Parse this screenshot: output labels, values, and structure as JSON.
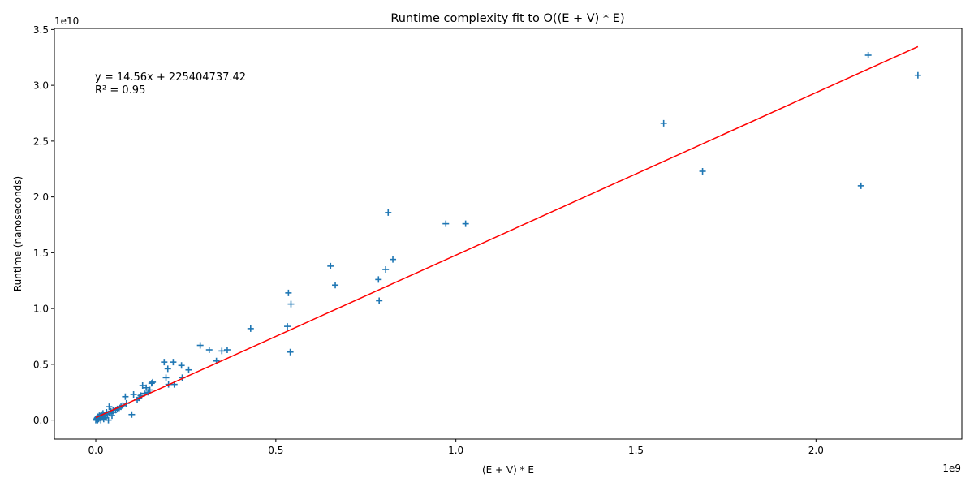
{
  "chart_data": {
    "type": "scatter",
    "title": "Runtime complexity fit to O((E + V) * E)",
    "xlabel": "(E + V) * E",
    "ylabel": "Runtime (nanoseconds)",
    "x_scale_label": "1e9",
    "y_scale_label": "1e10",
    "xlim": [
      -0.115,
      2.405
    ],
    "ylim": [
      -0.17,
      3.51
    ],
    "xticks": [
      0.0,
      0.5,
      1.0,
      1.5,
      2.0
    ],
    "xtick_labels": [
      "0.0",
      "0.5",
      "1.0",
      "1.5",
      "2.0"
    ],
    "yticks": [
      0.0,
      0.5,
      1.0,
      1.5,
      2.0,
      2.5,
      3.0,
      3.5
    ],
    "ytick_labels": [
      "0.0",
      "0.5",
      "1.0",
      "1.5",
      "2.0",
      "2.5",
      "3.0",
      "3.5"
    ],
    "grid": false,
    "legend": false,
    "point_color": "#1f77b4",
    "fit_color": "#ff0000",
    "marker": "plus",
    "annotation": {
      "equation": "y = 14.56x + 225404737.42",
      "r_squared": "R² = 0.95"
    },
    "fit": {
      "slope": 14.56,
      "intercept": 225404737.42,
      "x_range": [
        0.0,
        2.283
      ]
    },
    "points": [
      {
        "x": 0.0,
        "y": 0.0
      },
      {
        "x": 0.002,
        "y": 0.01
      },
      {
        "x": 0.004,
        "y": 0.02
      },
      {
        "x": 0.005,
        "y": 0.0
      },
      {
        "x": 0.006,
        "y": 0.03
      },
      {
        "x": 0.008,
        "y": 0.01
      },
      {
        "x": 0.01,
        "y": 0.04
      },
      {
        "x": 0.012,
        "y": 0.02
      },
      {
        "x": 0.014,
        "y": 0.0
      },
      {
        "x": 0.016,
        "y": 0.05
      },
      {
        "x": 0.018,
        "y": 0.03
      },
      {
        "x": 0.02,
        "y": 0.06
      },
      {
        "x": 0.022,
        "y": 0.01
      },
      {
        "x": 0.025,
        "y": 0.04
      },
      {
        "x": 0.028,
        "y": 0.02
      },
      {
        "x": 0.03,
        "y": 0.07
      },
      {
        "x": 0.032,
        "y": 0.05
      },
      {
        "x": 0.035,
        "y": 0.0
      },
      {
        "x": 0.037,
        "y": 0.12
      },
      {
        "x": 0.04,
        "y": 0.06
      },
      {
        "x": 0.042,
        "y": 0.08
      },
      {
        "x": 0.045,
        "y": 0.04
      },
      {
        "x": 0.048,
        "y": 0.09
      },
      {
        "x": 0.05,
        "y": 0.07
      },
      {
        "x": 0.055,
        "y": 0.09
      },
      {
        "x": 0.06,
        "y": 0.1
      },
      {
        "x": 0.065,
        "y": 0.11
      },
      {
        "x": 0.07,
        "y": 0.12
      },
      {
        "x": 0.075,
        "y": 0.13
      },
      {
        "x": 0.082,
        "y": 0.21
      },
      {
        "x": 0.085,
        "y": 0.15
      },
      {
        "x": 0.1,
        "y": 0.05
      },
      {
        "x": 0.105,
        "y": 0.23
      },
      {
        "x": 0.115,
        "y": 0.18
      },
      {
        "x": 0.12,
        "y": 0.2
      },
      {
        "x": 0.125,
        "y": 0.22
      },
      {
        "x": 0.13,
        "y": 0.31
      },
      {
        "x": 0.135,
        "y": 0.24
      },
      {
        "x": 0.14,
        "y": 0.29
      },
      {
        "x": 0.145,
        "y": 0.25
      },
      {
        "x": 0.15,
        "y": 0.27
      },
      {
        "x": 0.155,
        "y": 0.33
      },
      {
        "x": 0.158,
        "y": 0.34
      },
      {
        "x": 0.19,
        "y": 0.52
      },
      {
        "x": 0.195,
        "y": 0.38
      },
      {
        "x": 0.2,
        "y": 0.46
      },
      {
        "x": 0.202,
        "y": 0.32
      },
      {
        "x": 0.215,
        "y": 0.52
      },
      {
        "x": 0.218,
        "y": 0.32
      },
      {
        "x": 0.238,
        "y": 0.49
      },
      {
        "x": 0.24,
        "y": 0.38
      },
      {
        "x": 0.258,
        "y": 0.45
      },
      {
        "x": 0.29,
        "y": 0.67
      },
      {
        "x": 0.315,
        "y": 0.63
      },
      {
        "x": 0.335,
        "y": 0.53
      },
      {
        "x": 0.35,
        "y": 0.62
      },
      {
        "x": 0.365,
        "y": 0.63
      },
      {
        "x": 0.43,
        "y": 0.82
      },
      {
        "x": 0.532,
        "y": 0.84
      },
      {
        "x": 0.535,
        "y": 1.14
      },
      {
        "x": 0.54,
        "y": 0.61
      },
      {
        "x": 0.542,
        "y": 1.04
      },
      {
        "x": 0.652,
        "y": 1.38
      },
      {
        "x": 0.665,
        "y": 1.21
      },
      {
        "x": 0.785,
        "y": 1.26
      },
      {
        "x": 0.787,
        "y": 1.07
      },
      {
        "x": 0.805,
        "y": 1.35
      },
      {
        "x": 0.812,
        "y": 1.86
      },
      {
        "x": 0.825,
        "y": 1.44
      },
      {
        "x": 0.972,
        "y": 1.76
      },
      {
        "x": 1.027,
        "y": 1.76
      },
      {
        "x": 1.577,
        "y": 2.66
      },
      {
        "x": 1.685,
        "y": 2.23
      },
      {
        "x": 2.125,
        "y": 2.1
      },
      {
        "x": 2.145,
        "y": 3.27
      },
      {
        "x": 2.283,
        "y": 3.09
      }
    ]
  }
}
